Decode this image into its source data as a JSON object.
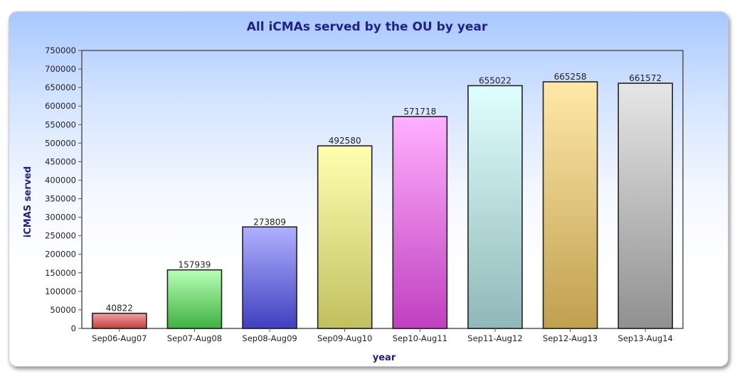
{
  "chart_data": {
    "type": "bar",
    "title": "All iCMAs served by the OU by year",
    "xlabel": "year",
    "ylabel": "iCMAS served",
    "ylim": [
      0,
      750000
    ],
    "ytick_step": 50000,
    "yticks": [
      "0",
      "50000",
      "100000",
      "150000",
      "200000",
      "250000",
      "300000",
      "350000",
      "400000",
      "450000",
      "500000",
      "550000",
      "600000",
      "650000",
      "700000",
      "750000"
    ],
    "categories": [
      "Sep06-Aug07",
      "Sep07-Aug08",
      "Sep08-Aug09",
      "Sep09-Aug10",
      "Sep10-Aug11",
      "Sep11-Aug12",
      "Sep12-Aug13",
      "Sep13-Aug14"
    ],
    "values": [
      40822,
      157939,
      273809,
      492580,
      571718,
      655022,
      665258,
      661572
    ],
    "value_labels": [
      "40822",
      "157939",
      "273809",
      "492580",
      "571718",
      "655022",
      "665258",
      "661572"
    ],
    "bar_colors": [
      [
        "#f0a0a0",
        "#c24040"
      ],
      [
        "#b8ffb8",
        "#40b040"
      ],
      [
        "#b0b0ff",
        "#4040c0"
      ],
      [
        "#ffffb0",
        "#c0c060"
      ],
      [
        "#ffb0ff",
        "#c040c0"
      ],
      [
        "#e0ffff",
        "#90b8b8"
      ],
      [
        "#ffe8a8",
        "#c0a050"
      ],
      [
        "#e6e6e6",
        "#909090"
      ]
    ],
    "legend": "none",
    "grid": false
  }
}
